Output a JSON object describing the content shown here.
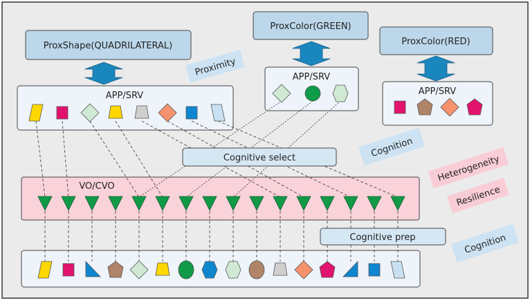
{
  "proximity_boxes": {
    "shape": "ProxShape(QUADRILATERAL)",
    "green": "ProxColor(GREEN)",
    "red": "ProxColor(RED)"
  },
  "app_label": "APP/SRV",
  "vo_label": "VO/CVO",
  "cognitive_select": "Cognitive select",
  "cognitive_prep": "Cognitive prep",
  "tags": {
    "proximity": "Proximity",
    "cognition_top": "Cognition",
    "heterogeneity": "Heterogeneity",
    "resilience": "Resilience",
    "cognition_bottom": "Cognition"
  },
  "colors": {
    "background": "#ebebeb",
    "prox_box": "#bcd7ea",
    "app_box": "#eef4fa",
    "vo_box": "#f9d2da",
    "arrow": "#1a86be",
    "triangle": "#119a46",
    "tag_blue": "#cde3f3",
    "tag_pink": "#f9cdd6"
  },
  "app_shapes_left": [
    {
      "shape": "parallelogram",
      "color": "#ffd700"
    },
    {
      "shape": "square",
      "color": "#e2136e"
    },
    {
      "shape": "diamond",
      "color": "#cfe9d4"
    },
    {
      "shape": "trapezoid",
      "color": "#ffd700"
    },
    {
      "shape": "trapezoid",
      "color": "#cfcfcf"
    },
    {
      "shape": "diamond",
      "color": "#f7926f"
    },
    {
      "shape": "square",
      "color": "#0e86d0"
    },
    {
      "shape": "parallelogram-r",
      "color": "#c9e0f2"
    }
  ],
  "app_shapes_green": [
    {
      "shape": "diamond",
      "color": "#cfe9d4"
    },
    {
      "shape": "circle",
      "color": "#0f9b48"
    },
    {
      "shape": "hexagon",
      "color": "#cfe9d4"
    }
  ],
  "app_shapes_red": [
    {
      "shape": "square",
      "color": "#e2136e"
    },
    {
      "shape": "pentagon",
      "color": "#b08468"
    },
    {
      "shape": "diamond",
      "color": "#f7926f"
    },
    {
      "shape": "pentagon",
      "color": "#e2136e"
    }
  ],
  "vo_nodes": 16,
  "bottom_shapes": [
    {
      "shape": "parallelogram",
      "color": "#ffd700"
    },
    {
      "shape": "square",
      "color": "#e2136e"
    },
    {
      "shape": "rtriangle",
      "color": "#0e86d0"
    },
    {
      "shape": "pentagon",
      "color": "#b08468"
    },
    {
      "shape": "diamond",
      "color": "#cfe9d4"
    },
    {
      "shape": "trapezoid",
      "color": "#ffd700"
    },
    {
      "shape": "ellipse",
      "color": "#0f9b48"
    },
    {
      "shape": "hexagon",
      "color": "#0e86d0"
    },
    {
      "shape": "hexagon",
      "color": "#cfe9d4"
    },
    {
      "shape": "ellipse",
      "color": "#b08468"
    },
    {
      "shape": "trapezoid",
      "color": "#cfcfcf"
    },
    {
      "shape": "diamond",
      "color": "#f7926f"
    },
    {
      "shape": "pentagon",
      "color": "#e2136e"
    },
    {
      "shape": "ltriangle",
      "color": "#0e86d0"
    },
    {
      "shape": "square",
      "color": "#0e86d0"
    },
    {
      "shape": "parallelogram-r",
      "color": "#c9e0f2"
    }
  ]
}
